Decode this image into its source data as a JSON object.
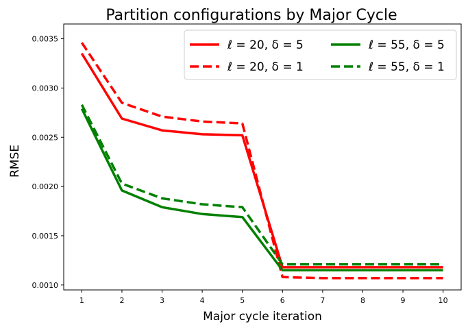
{
  "chart_data": {
    "type": "line",
    "title": "Partition configurations by Major Cycle",
    "xlabel": "Major cycle iteration",
    "ylabel": "RMSE",
    "x": [
      1,
      2,
      3,
      4,
      5,
      6,
      7,
      8,
      9,
      10
    ],
    "xticks": [
      "1",
      "2",
      "3",
      "4",
      "5",
      "6",
      "7",
      "8",
      "9",
      "10"
    ],
    "yticks": [
      "0.0010",
      "0.0015",
      "0.0020",
      "0.0025",
      "0.0030",
      "0.0035"
    ],
    "ytick_values": [
      0.001,
      0.0015,
      0.002,
      0.0025,
      0.003,
      0.0035
    ],
    "xlim": [
      0.55,
      10.45
    ],
    "ylim": [
      0.00095,
      0.00365
    ],
    "grid": false,
    "legend_position": "top-right",
    "legend_columns": 2,
    "series": [
      {
        "name": "ℓ = 20, δ = 5",
        "color": "#ff0000",
        "dash": "solid",
        "values": [
          0.00335,
          0.00269,
          0.00257,
          0.00253,
          0.00252,
          0.00118,
          0.00118,
          0.00118,
          0.00118,
          0.00118
        ]
      },
      {
        "name": "ℓ = 20, δ = 1",
        "color": "#ff0000",
        "dash": "dashed",
        "values": [
          0.00346,
          0.00285,
          0.00271,
          0.00266,
          0.00264,
          0.00108,
          0.00107,
          0.00107,
          0.00107,
          0.00107
        ]
      },
      {
        "name": "ℓ = 55, δ = 5",
        "color": "#008000",
        "dash": "solid",
        "values": [
          0.00279,
          0.00196,
          0.00179,
          0.00172,
          0.00169,
          0.00115,
          0.00115,
          0.00115,
          0.00115,
          0.00115
        ]
      },
      {
        "name": "ℓ = 55, δ = 1",
        "color": "#008000",
        "dash": "dashed",
        "values": [
          0.00283,
          0.00203,
          0.00188,
          0.00182,
          0.00179,
          0.00121,
          0.00121,
          0.00121,
          0.00121,
          0.00121
        ]
      }
    ]
  }
}
